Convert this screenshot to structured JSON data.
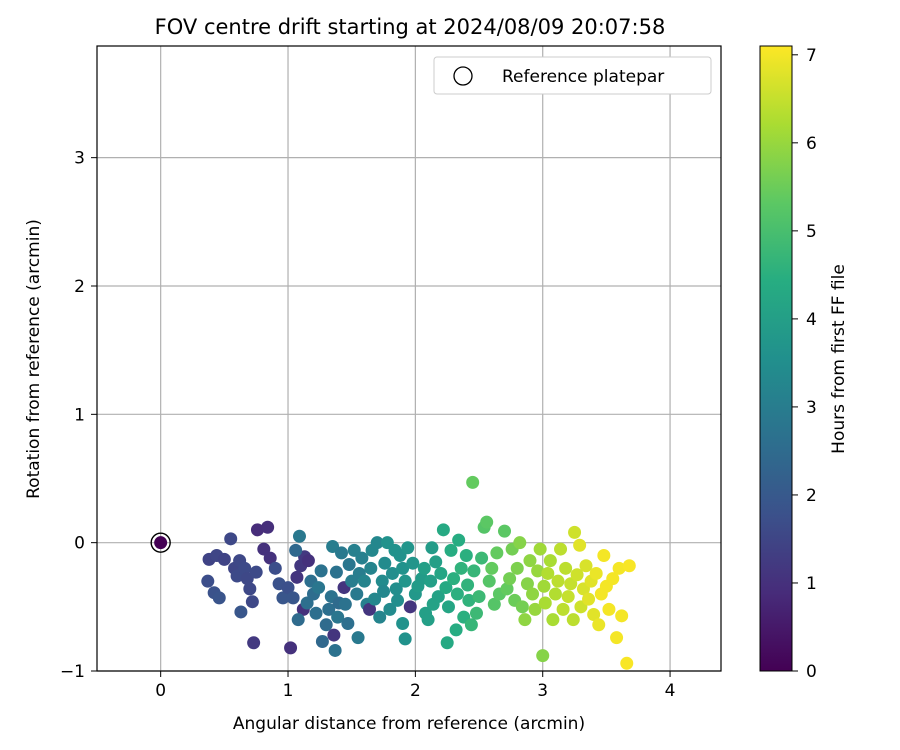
{
  "chart_data": {
    "type": "scatter",
    "title": "FOV centre drift starting at 2024/08/09 20:07:58",
    "xlabel": "Angular distance from reference (arcmin)",
    "ylabel": "Rotation from reference (arcmin)",
    "xlim": [
      -0.5,
      4.4
    ],
    "ylim": [
      -1.0,
      3.87
    ],
    "x_ticks": [
      0,
      1,
      2,
      3,
      4
    ],
    "y_ticks": [
      -1,
      0,
      1,
      2,
      3
    ],
    "grid": true,
    "legend": {
      "placement": "top-right",
      "entries": [
        "Reference platepar"
      ]
    },
    "reference_point": {
      "name": "Reference platepar",
      "x": 0,
      "y": 0,
      "marker": "hollow-circle"
    },
    "colorbar": {
      "label": "Hours from first FF file",
      "range": [
        0,
        7.1
      ],
      "ticks": [
        0,
        1,
        2,
        3,
        4,
        5,
        6,
        7
      ],
      "colormap": "viridis"
    },
    "series": [
      {
        "columns": [
          "x",
          "y",
          "hours"
        ],
        "points": [
          [
            0.0,
            0.0,
            0.0
          ],
          [
            0.38,
            -0.13,
            1.45
          ],
          [
            0.44,
            -0.1,
            1.5
          ],
          [
            0.5,
            -0.13,
            1.45
          ],
          [
            0.55,
            0.03,
            1.55
          ],
          [
            0.58,
            -0.2,
            1.5
          ],
          [
            0.6,
            -0.26,
            1.6
          ],
          [
            0.62,
            -0.14,
            1.55
          ],
          [
            0.66,
            -0.2,
            1.6
          ],
          [
            0.68,
            -0.28,
            1.55
          ],
          [
            0.7,
            -0.36,
            1.55
          ],
          [
            0.72,
            -0.46,
            1.55
          ],
          [
            0.75,
            -0.23,
            1.6
          ],
          [
            0.37,
            -0.3,
            1.7
          ],
          [
            0.42,
            -0.39,
            1.8
          ],
          [
            0.46,
            -0.43,
            1.85
          ],
          [
            0.63,
            -0.54,
            1.9
          ],
          [
            0.76,
            0.1,
            0.9
          ],
          [
            0.84,
            0.12,
            0.95
          ],
          [
            0.81,
            -0.05,
            1.0
          ],
          [
            0.86,
            -0.12,
            1.0
          ],
          [
            0.73,
            -0.78,
            1.2
          ],
          [
            1.02,
            -0.82,
            1.0
          ],
          [
            0.9,
            -0.2,
            1.7
          ],
          [
            0.93,
            -0.32,
            1.8
          ],
          [
            0.96,
            -0.43,
            1.9
          ],
          [
            1.0,
            -0.35,
            1.75
          ],
          [
            1.04,
            -0.43,
            1.9
          ],
          [
            1.07,
            -0.27,
            1.1
          ],
          [
            1.1,
            -0.18,
            1.15
          ],
          [
            1.12,
            -0.52,
            1.0
          ],
          [
            1.13,
            -0.11,
            1.2
          ],
          [
            1.16,
            -0.14,
            1.0
          ],
          [
            1.06,
            -0.06,
            2.4
          ],
          [
            1.08,
            -0.6,
            2.5
          ],
          [
            1.09,
            0.05,
            2.85
          ],
          [
            1.15,
            -0.47,
            2.6
          ],
          [
            1.18,
            -0.3,
            2.6
          ],
          [
            1.2,
            -0.4,
            2.55
          ],
          [
            1.22,
            -0.55,
            2.6
          ],
          [
            1.24,
            -0.35,
            2.8
          ],
          [
            1.26,
            -0.22,
            2.7
          ],
          [
            1.27,
            -0.77,
            2.4
          ],
          [
            1.3,
            -0.64,
            2.5
          ],
          [
            1.32,
            -0.52,
            2.6
          ],
          [
            1.34,
            -0.42,
            2.7
          ],
          [
            1.35,
            -0.03,
            3.0
          ],
          [
            1.36,
            -0.72,
            1.1
          ],
          [
            1.38,
            -0.23,
            2.7
          ],
          [
            1.39,
            -0.58,
            2.8
          ],
          [
            1.4,
            -0.47,
            2.5
          ],
          [
            1.42,
            -0.08,
            2.9
          ],
          [
            1.44,
            -0.35,
            1.1
          ],
          [
            1.45,
            -0.48,
            2.7
          ],
          [
            1.47,
            -0.63,
            2.6
          ],
          [
            1.48,
            -0.17,
            2.8
          ],
          [
            1.5,
            -0.3,
            3.0
          ],
          [
            1.52,
            -0.06,
            3.1
          ],
          [
            1.54,
            -0.4,
            2.9
          ],
          [
            1.55,
            -0.74,
            2.9
          ],
          [
            1.37,
            -0.84,
            2.7
          ],
          [
            1.56,
            -0.24,
            3.0
          ],
          [
            1.58,
            -0.12,
            3.1
          ],
          [
            1.6,
            -0.3,
            3.2
          ],
          [
            1.62,
            -0.48,
            3.1
          ],
          [
            1.64,
            -0.52,
            1.1
          ],
          [
            1.65,
            -0.2,
            3.2
          ],
          [
            1.66,
            -0.06,
            3.3
          ],
          [
            1.68,
            -0.44,
            3.3
          ],
          [
            1.7,
            0.0,
            3.3
          ],
          [
            1.72,
            -0.58,
            3.2
          ],
          [
            1.74,
            -0.3,
            3.4
          ],
          [
            1.75,
            -0.38,
            3.3
          ],
          [
            1.76,
            -0.16,
            3.4
          ],
          [
            1.78,
            0.0,
            3.6
          ],
          [
            1.8,
            -0.52,
            3.4
          ],
          [
            1.82,
            -0.24,
            3.5
          ],
          [
            1.84,
            -0.06,
            3.6
          ],
          [
            1.85,
            -0.36,
            3.5
          ],
          [
            1.86,
            -0.45,
            3.5
          ],
          [
            1.88,
            -0.1,
            3.6
          ],
          [
            1.9,
            -0.2,
            3.6
          ],
          [
            1.92,
            -0.3,
            3.7
          ],
          [
            1.94,
            -0.04,
            3.7
          ],
          [
            1.96,
            -0.5,
            1.1
          ],
          [
            1.98,
            -0.16,
            3.7
          ],
          [
            2.0,
            -0.4,
            3.8
          ],
          [
            2.02,
            -0.34,
            3.9
          ],
          [
            1.9,
            -0.63,
            3.6
          ],
          [
            1.92,
            -0.75,
            3.6
          ],
          [
            2.05,
            -0.28,
            3.9
          ],
          [
            2.07,
            -0.2,
            4.0
          ],
          [
            2.08,
            -0.55,
            4.0
          ],
          [
            2.1,
            -0.6,
            4.0
          ],
          [
            2.12,
            -0.3,
            4.0
          ],
          [
            2.13,
            -0.04,
            3.9
          ],
          [
            2.14,
            -0.48,
            4.1
          ],
          [
            2.16,
            -0.15,
            4.0
          ],
          [
            2.18,
            -0.42,
            4.1
          ],
          [
            2.2,
            -0.24,
            4.2
          ],
          [
            2.22,
            0.1,
            4.3
          ],
          [
            2.24,
            -0.35,
            4.3
          ],
          [
            2.25,
            -0.78,
            4.3
          ],
          [
            2.26,
            -0.5,
            4.2
          ],
          [
            2.28,
            -0.06,
            4.4
          ],
          [
            2.3,
            -0.28,
            4.5
          ],
          [
            2.32,
            -0.68,
            4.4
          ],
          [
            2.33,
            -0.4,
            4.5
          ],
          [
            2.34,
            0.02,
            4.4
          ],
          [
            2.36,
            -0.2,
            4.6
          ],
          [
            2.38,
            -0.58,
            4.5
          ],
          [
            2.4,
            -0.1,
            4.5
          ],
          [
            2.41,
            -0.33,
            4.6
          ],
          [
            2.42,
            -0.45,
            4.6
          ],
          [
            2.44,
            -0.64,
            4.7
          ],
          [
            2.45,
            0.47,
            5.4
          ],
          [
            2.46,
            -0.22,
            4.7
          ],
          [
            2.48,
            -0.55,
            4.8
          ],
          [
            2.5,
            -0.42,
            4.8
          ],
          [
            2.52,
            -0.12,
            4.8
          ],
          [
            2.54,
            0.12,
            5.2
          ],
          [
            2.56,
            0.16,
            5.3
          ],
          [
            2.58,
            -0.3,
            5.2
          ],
          [
            2.6,
            -0.2,
            5.4
          ],
          [
            2.62,
            -0.48,
            5.2
          ],
          [
            2.64,
            -0.08,
            5.4
          ],
          [
            2.66,
            -0.4,
            5.3
          ],
          [
            2.7,
            0.09,
            5.3
          ],
          [
            2.72,
            -0.36,
            5.4
          ],
          [
            2.74,
            -0.28,
            5.6
          ],
          [
            2.76,
            -0.05,
            5.6
          ],
          [
            2.78,
            -0.45,
            5.5
          ],
          [
            2.8,
            -0.2,
            5.7
          ],
          [
            2.82,
            0.0,
            5.8
          ],
          [
            2.84,
            -0.5,
            5.6
          ],
          [
            2.86,
            -0.6,
            5.9
          ],
          [
            2.88,
            -0.32,
            5.8
          ],
          [
            2.9,
            -0.14,
            5.9
          ],
          [
            2.92,
            -0.4,
            5.9
          ],
          [
            2.94,
            -0.52,
            6.0
          ],
          [
            2.96,
            -0.22,
            6.0
          ],
          [
            2.98,
            -0.05,
            6.1
          ],
          [
            3.0,
            -0.88,
            5.8
          ],
          [
            3.01,
            -0.34,
            6.1
          ],
          [
            3.02,
            -0.47,
            6.2
          ],
          [
            3.04,
            -0.24,
            6.3
          ],
          [
            3.06,
            -0.14,
            6.2
          ],
          [
            3.08,
            -0.6,
            6.2
          ],
          [
            3.1,
            -0.4,
            6.3
          ],
          [
            3.12,
            -0.3,
            6.4
          ],
          [
            3.14,
            -0.05,
            6.4
          ],
          [
            3.16,
            -0.52,
            6.4
          ],
          [
            3.18,
            -0.2,
            6.4
          ],
          [
            3.2,
            -0.42,
            6.5
          ],
          [
            3.22,
            -0.32,
            6.5
          ],
          [
            3.24,
            -0.6,
            6.4
          ],
          [
            3.25,
            0.08,
            6.6
          ],
          [
            3.27,
            -0.25,
            6.6
          ],
          [
            3.29,
            -0.02,
            6.8
          ],
          [
            3.3,
            -0.5,
            6.6
          ],
          [
            3.32,
            -0.36,
            6.7
          ],
          [
            3.34,
            -0.18,
            6.7
          ],
          [
            3.36,
            -0.44,
            6.8
          ],
          [
            3.38,
            -0.3,
            6.8
          ],
          [
            3.4,
            -0.56,
            6.8
          ],
          [
            3.42,
            -0.24,
            6.9
          ],
          [
            3.44,
            -0.64,
            6.9
          ],
          [
            3.46,
            -0.4,
            7.0
          ],
          [
            3.48,
            -0.1,
            7.0
          ],
          [
            3.5,
            -0.34,
            7.0
          ],
          [
            3.52,
            -0.52,
            7.0
          ],
          [
            3.55,
            -0.28,
            7.0
          ],
          [
            3.58,
            -0.74,
            7.0
          ],
          [
            3.6,
            -0.2,
            7.0
          ],
          [
            3.62,
            -0.57,
            7.0
          ],
          [
            3.66,
            -0.94,
            7.05
          ],
          [
            3.68,
            -0.18,
            7.05
          ]
        ]
      }
    ]
  }
}
